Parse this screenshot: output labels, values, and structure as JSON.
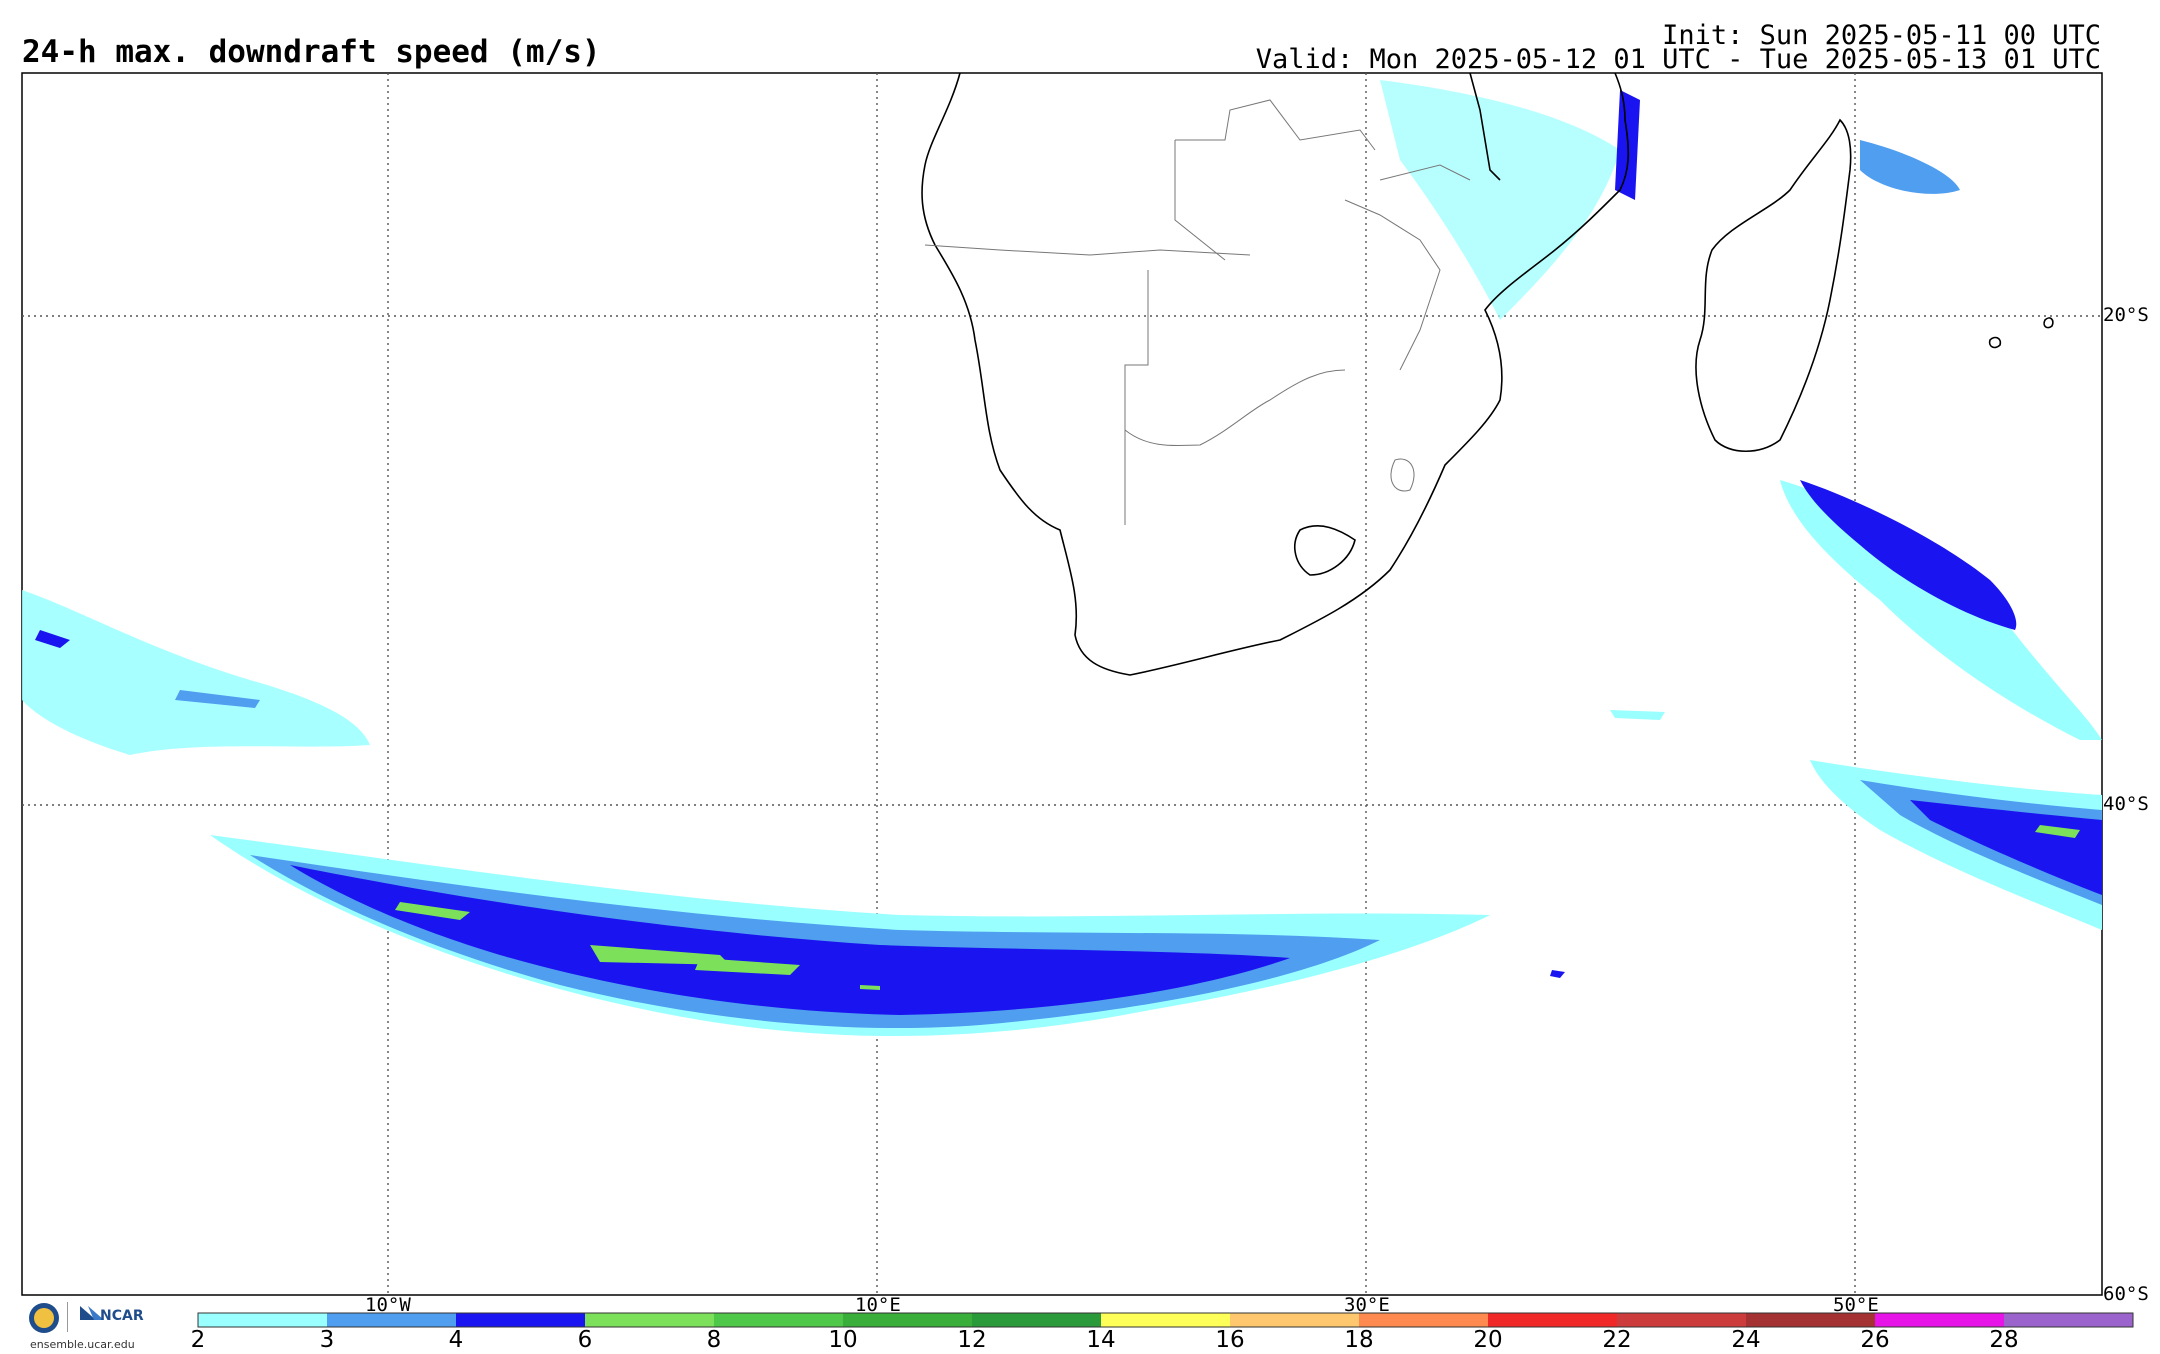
{
  "header": {
    "title": "24-h max. downdraft speed (m/s)",
    "init": "Init: Sun 2025-05-11 00 UTC",
    "valid": "Valid: Mon 2025-05-12 01 UTC - Tue 2025-05-13 01 UTC"
  },
  "map": {
    "lon_labels": [
      "10°W",
      "10°E",
      "30°E",
      "50°E"
    ],
    "lat_labels": [
      "20°S",
      "40°S",
      "60°S"
    ],
    "grid": "dotted",
    "colors": {
      "c2": "#99ffff",
      "c3": "#4f9ef0",
      "c4": "#1a14f0",
      "c6": "#7de05a",
      "c8": "#4fc84a",
      "c10": "#3aae3a",
      "c12": "#2a9a3a",
      "c14": "#ffff5a",
      "c16": "#ffc86e",
      "c18": "#ff8a50",
      "c20": "#f02828",
      "c22": "#cc3c3c",
      "c24": "#a53232",
      "c26": "#e614e6",
      "c28": "#9b64cc"
    }
  },
  "legend": {
    "values": [
      "2",
      "3",
      "4",
      "6",
      "8",
      "10",
      "12",
      "14",
      "16",
      "18",
      "20",
      "22",
      "24",
      "26",
      "28"
    ],
    "colors": [
      "#99ffff",
      "#4f9ef0",
      "#1a14f0",
      "#7de05a",
      "#4fc84a",
      "#3aae3a",
      "#2a9a3a",
      "#ffff5a",
      "#ffc86e",
      "#ff8a50",
      "#f02828",
      "#cc3c3c",
      "#a53232",
      "#e614e6",
      "#9b64cc"
    ]
  },
  "footer": {
    "logo_label": "NCAR",
    "site": "ensemble.ucar.edu"
  }
}
